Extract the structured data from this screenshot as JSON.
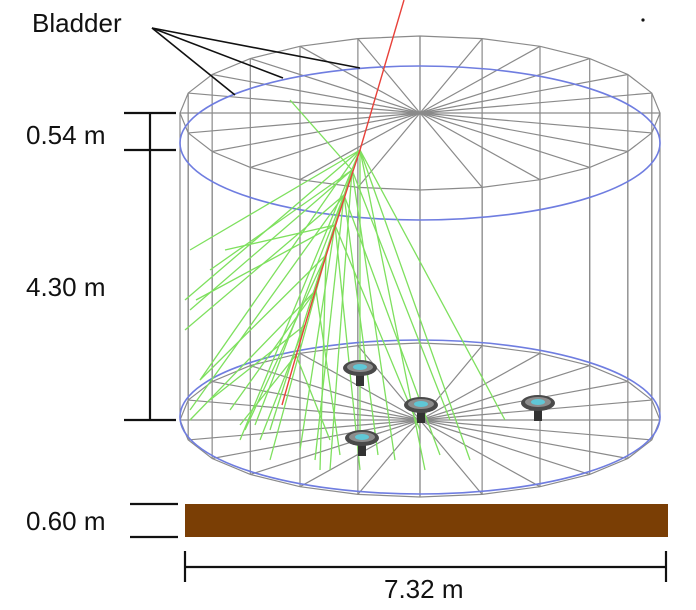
{
  "labels": {
    "bladder": "Bladder",
    "top_gap": "0.54 m",
    "height": "4.30 m",
    "base_thickness": "0.60 m",
    "diameter": "7.32 m"
  },
  "colors": {
    "wireframe": "#8a8a8a",
    "bladder_ring": "#6f7de0",
    "muon_track": "#e8413a",
    "cherenkov_light": "#7ee05e",
    "base_slab": "#7a3e05",
    "pmt_glass": "#5fc7d6"
  },
  "icons": {
    "pmt": "photomultiplier-tube-icon"
  }
}
